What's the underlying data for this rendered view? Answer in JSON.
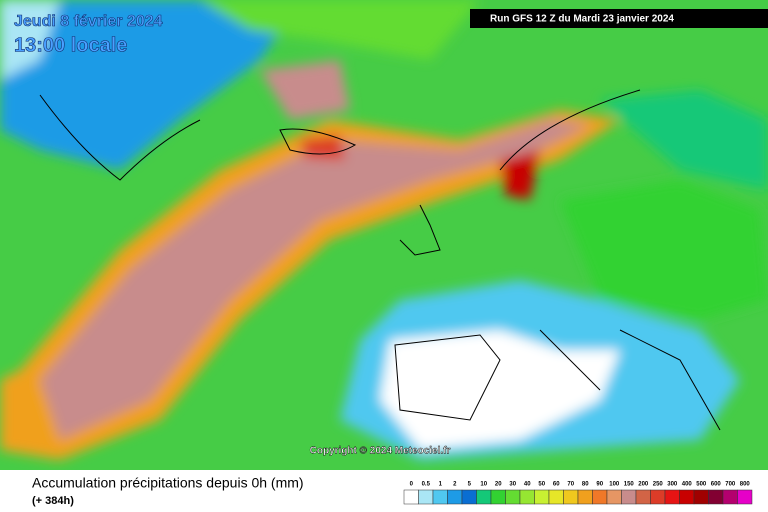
{
  "header": {
    "date": "Jeudi 8 février 2024",
    "time": "13:00 locale",
    "run": "Run GFS 12 Z du Mardi 23 janvier 2024"
  },
  "map": {
    "copyright": "Copyright © 2024 Meteociel.fr"
  },
  "footer": {
    "title": "Accumulation précipitations depuis 0h (mm)",
    "subtitle": "(+ 384h)"
  },
  "legend": {
    "items": [
      {
        "value": 0,
        "color": "#ffffff"
      },
      {
        "value": 0.5,
        "color": "#aae6f5"
      },
      {
        "value": 1,
        "color": "#50c8f0"
      },
      {
        "value": 2,
        "color": "#1e9be6"
      },
      {
        "value": 5,
        "color": "#0a6ed2"
      },
      {
        "value": 10,
        "color": "#14c878"
      },
      {
        "value": 20,
        "color": "#32d232"
      },
      {
        "value": 30,
        "color": "#64dc32"
      },
      {
        "value": 40,
        "color": "#96e632"
      },
      {
        "value": 50,
        "color": "#c8f032"
      },
      {
        "value": 60,
        "color": "#e6e628"
      },
      {
        "value": 70,
        "color": "#f0c81e"
      },
      {
        "value": 80,
        "color": "#f0a01e"
      },
      {
        "value": 90,
        "color": "#f07828"
      },
      {
        "value": 100,
        "color": "#e69664"
      },
      {
        "value": 150,
        "color": "#c88c8c"
      },
      {
        "value": 200,
        "color": "#d26446"
      },
      {
        "value": 250,
        "color": "#dc3c28"
      },
      {
        "value": 300,
        "color": "#e61414"
      },
      {
        "value": 400,
        "color": "#c80000"
      },
      {
        "value": 500,
        "color": "#a00000"
      },
      {
        "value": 600,
        "color": "#820032"
      },
      {
        "value": 700,
        "color": "#b4006e"
      },
      {
        "value": 800,
        "color": "#e600c8"
      }
    ]
  }
}
